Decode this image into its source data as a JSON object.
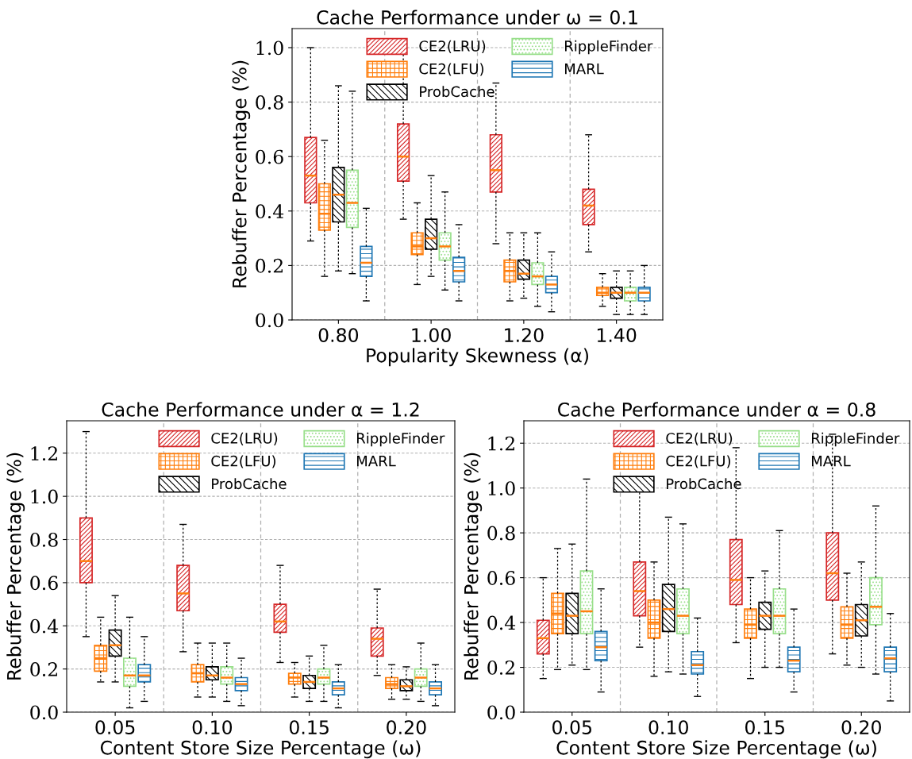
{
  "chart_data": [
    {
      "type": "box",
      "title": "Cache Performance under ω = 0.1",
      "xlabel": "Popularity Skewness (α)",
      "ylabel": "Rebuffer Percentage (%)",
      "categories": [
        "0.80",
        "1.00",
        "1.20",
        "1.40"
      ],
      "ylim": [
        0,
        1.07
      ],
      "yticks": [
        {
          "value": 0,
          "label": "0.0"
        },
        {
          "value": 0.2,
          "label": "0.2"
        },
        {
          "value": 0.4,
          "label": "0.4"
        },
        {
          "value": 0.6,
          "label": "0.6"
        },
        {
          "value": 0.8,
          "label": "0.8"
        },
        {
          "value": 1,
          "label": "1.0"
        }
      ],
      "grid": "y",
      "legend": "top right",
      "series": [
        {
          "name": "CE2(LRU)",
          "color": "#d62728",
          "boxes": [
            {
              "low": 0.29,
              "q1": 0.43,
              "median": 0.53,
              "q3": 0.67,
              "high": 1.0
            },
            {
              "low": 0.37,
              "q1": 0.51,
              "median": 0.6,
              "q3": 0.72,
              "high": 1.02
            },
            {
              "low": 0.28,
              "q1": 0.47,
              "median": 0.55,
              "q3": 0.68,
              "high": 0.87
            },
            {
              "low": 0.25,
              "q1": 0.35,
              "median": 0.42,
              "q3": 0.48,
              "high": 0.68
            }
          ]
        },
        {
          "name": "CE2(LFU)",
          "color": "#ff7f0e",
          "boxes": [
            {
              "low": 0.16,
              "q1": 0.33,
              "median": 0.39,
              "q3": 0.5,
              "high": 0.66
            },
            {
              "low": 0.13,
              "q1": 0.24,
              "median": 0.27,
              "q3": 0.32,
              "high": 0.43
            },
            {
              "low": 0.07,
              "q1": 0.14,
              "median": 0.18,
              "q3": 0.22,
              "high": 0.32
            },
            {
              "low": 0.05,
              "q1": 0.09,
              "median": 0.1,
              "q3": 0.12,
              "high": 0.17
            }
          ]
        },
        {
          "name": "ProbCache",
          "color": "#000000",
          "boxes": [
            {
              "low": 0.18,
              "q1": 0.36,
              "median": 0.46,
              "q3": 0.56,
              "high": 0.86
            },
            {
              "low": 0.16,
              "q1": 0.26,
              "median": 0.3,
              "q3": 0.37,
              "high": 0.53
            },
            {
              "low": 0.08,
              "q1": 0.15,
              "median": 0.17,
              "q3": 0.22,
              "high": 0.32
            },
            {
              "low": 0.02,
              "q1": 0.08,
              "median": 0.1,
              "q3": 0.12,
              "high": 0.18
            }
          ]
        },
        {
          "name": "RippleFinder",
          "color": "#98df8a",
          "boxes": [
            {
              "low": 0.17,
              "q1": 0.34,
              "median": 0.43,
              "q3": 0.55,
              "high": 0.84
            },
            {
              "low": 0.11,
              "q1": 0.22,
              "median": 0.27,
              "q3": 0.32,
              "high": 0.47
            },
            {
              "low": 0.05,
              "q1": 0.13,
              "median": 0.16,
              "q3": 0.21,
              "high": 0.32
            },
            {
              "low": 0.02,
              "q1": 0.07,
              "median": 0.1,
              "q3": 0.12,
              "high": 0.18
            }
          ]
        },
        {
          "name": "MARL",
          "color": "#1f77b4",
          "boxes": [
            {
              "low": 0.07,
              "q1": 0.16,
              "median": 0.21,
              "q3": 0.27,
              "high": 0.41
            },
            {
              "low": 0.07,
              "q1": 0.14,
              "median": 0.18,
              "q3": 0.23,
              "high": 0.35
            },
            {
              "low": 0.03,
              "q1": 0.1,
              "median": 0.13,
              "q3": 0.16,
              "high": 0.25
            },
            {
              "low": 0.02,
              "q1": 0.07,
              "median": 0.1,
              "q3": 0.12,
              "high": 0.2
            }
          ]
        }
      ]
    },
    {
      "type": "box",
      "title": "Cache Performance under α = 1.2",
      "xlabel": "Content Store Size Percentage (ω)",
      "ylabel": "Rebuffer Percentage (%)",
      "categories": [
        "0.05",
        "0.10",
        "0.15",
        "0.20"
      ],
      "ylim": [
        0,
        1.35
      ],
      "yticks": [
        {
          "value": 0,
          "label": "0.0"
        },
        {
          "value": 0.2,
          "label": "0.2"
        },
        {
          "value": 0.4,
          "label": "0.4"
        },
        {
          "value": 0.6,
          "label": "0.6"
        },
        {
          "value": 0.8,
          "label": "0.8"
        },
        {
          "value": 1,
          "label": "1.0"
        },
        {
          "value": 1.2,
          "label": "1.2"
        }
      ],
      "grid": "y",
      "legend": "top right",
      "series": [
        {
          "name": "CE2(LRU)",
          "color": "#d62728",
          "boxes": [
            {
              "low": 0.35,
              "q1": 0.6,
              "median": 0.7,
              "q3": 0.9,
              "high": 1.3
            },
            {
              "low": 0.28,
              "q1": 0.47,
              "median": 0.55,
              "q3": 0.68,
              "high": 0.87
            },
            {
              "low": 0.23,
              "q1": 0.37,
              "median": 0.42,
              "q3": 0.5,
              "high": 0.68
            },
            {
              "low": 0.17,
              "q1": 0.26,
              "median": 0.34,
              "q3": 0.39,
              "high": 0.57
            }
          ]
        },
        {
          "name": "CE2(LFU)",
          "color": "#ff7f0e",
          "boxes": [
            {
              "low": 0.14,
              "q1": 0.19,
              "median": 0.25,
              "q3": 0.31,
              "high": 0.44
            },
            {
              "low": 0.07,
              "q1": 0.14,
              "median": 0.18,
              "q3": 0.22,
              "high": 0.32
            },
            {
              "low": 0.07,
              "q1": 0.13,
              "median": 0.16,
              "q3": 0.18,
              "high": 0.23
            },
            {
              "low": 0.06,
              "q1": 0.11,
              "median": 0.13,
              "q3": 0.16,
              "high": 0.22
            }
          ]
        },
        {
          "name": "ProbCache",
          "color": "#000000",
          "boxes": [
            {
              "low": 0.14,
              "q1": 0.26,
              "median": 0.31,
              "q3": 0.38,
              "high": 0.54
            },
            {
              "low": 0.07,
              "q1": 0.15,
              "median": 0.17,
              "q3": 0.21,
              "high": 0.32
            },
            {
              "low": 0.05,
              "q1": 0.11,
              "median": 0.14,
              "q3": 0.17,
              "high": 0.26
            },
            {
              "low": 0.06,
              "q1": 0.1,
              "median": 0.12,
              "q3": 0.15,
              "high": 0.21
            }
          ]
        },
        {
          "name": "RippleFinder",
          "color": "#98df8a",
          "boxes": [
            {
              "low": 0.02,
              "q1": 0.12,
              "median": 0.17,
              "q3": 0.25,
              "high": 0.44
            },
            {
              "low": 0.05,
              "q1": 0.13,
              "median": 0.16,
              "q3": 0.21,
              "high": 0.32
            },
            {
              "low": 0.05,
              "q1": 0.13,
              "median": 0.16,
              "q3": 0.2,
              "high": 0.31
            },
            {
              "low": 0.05,
              "q1": 0.12,
              "median": 0.16,
              "q3": 0.2,
              "high": 0.32
            }
          ]
        },
        {
          "name": "MARL",
          "color": "#1f77b4",
          "boxes": [
            {
              "low": 0.05,
              "q1": 0.14,
              "median": 0.17,
              "q3": 0.22,
              "high": 0.35
            },
            {
              "low": 0.03,
              "q1": 0.1,
              "median": 0.13,
              "q3": 0.16,
              "high": 0.25
            },
            {
              "low": 0.02,
              "q1": 0.08,
              "median": 0.11,
              "q3": 0.14,
              "high": 0.22
            },
            {
              "low": 0.03,
              "q1": 0.08,
              "median": 0.11,
              "q3": 0.14,
              "high": 0.22
            }
          ]
        }
      ]
    },
    {
      "type": "box",
      "title": "Cache Performance under α = 0.8",
      "xlabel": "Content Store Size Percentage (ω)",
      "ylabel": "Rebuffer Percentage (%)",
      "categories": [
        "0.05",
        "0.10",
        "0.15",
        "0.20"
      ],
      "ylim": [
        0,
        1.3
      ],
      "yticks": [
        {
          "value": 0,
          "label": "0.0"
        },
        {
          "value": 0.2,
          "label": "0.2"
        },
        {
          "value": 0.4,
          "label": "0.4"
        },
        {
          "value": 0.6,
          "label": "0.6"
        },
        {
          "value": 0.8,
          "label": "0.8"
        },
        {
          "value": 1,
          "label": "1.0"
        },
        {
          "value": 1.2,
          "label": "1.2"
        }
      ],
      "grid": "y",
      "legend": "top right",
      "series": [
        {
          "name": "CE2(LRU)",
          "color": "#d62728",
          "boxes": [
            {
              "low": 0.15,
              "q1": 0.26,
              "median": 0.33,
              "q3": 0.41,
              "high": 0.6
            },
            {
              "low": 0.29,
              "q1": 0.43,
              "median": 0.54,
              "q3": 0.67,
              "high": 1.01
            },
            {
              "low": 0.31,
              "q1": 0.48,
              "median": 0.59,
              "q3": 0.77,
              "high": 1.18
            },
            {
              "low": 0.26,
              "q1": 0.5,
              "median": 0.62,
              "q3": 0.8,
              "high": 1.24
            }
          ]
        },
        {
          "name": "CE2(LFU)",
          "color": "#ff7f0e",
          "boxes": [
            {
              "low": 0.19,
              "q1": 0.35,
              "median": 0.44,
              "q3": 0.53,
              "high": 0.73
            },
            {
              "low": 0.16,
              "q1": 0.33,
              "median": 0.4,
              "q3": 0.5,
              "high": 0.67
            },
            {
              "low": 0.15,
              "q1": 0.33,
              "median": 0.39,
              "q3": 0.46,
              "high": 0.6
            },
            {
              "low": 0.21,
              "q1": 0.33,
              "median": 0.39,
              "q3": 0.47,
              "high": 0.62
            }
          ]
        },
        {
          "name": "ProbCache",
          "color": "#000000",
          "boxes": [
            {
              "low": 0.21,
              "q1": 0.35,
              "median": 0.43,
              "q3": 0.53,
              "high": 0.75
            },
            {
              "low": 0.18,
              "q1": 0.36,
              "median": 0.46,
              "q3": 0.57,
              "high": 0.87
            },
            {
              "low": 0.2,
              "q1": 0.37,
              "median": 0.43,
              "q3": 0.49,
              "high": 0.63
            },
            {
              "low": 0.2,
              "q1": 0.34,
              "median": 0.41,
              "q3": 0.48,
              "high": 0.67
            }
          ]
        },
        {
          "name": "RippleFinder",
          "color": "#98df8a",
          "boxes": [
            {
              "low": 0.19,
              "q1": 0.35,
              "median": 0.45,
              "q3": 0.63,
              "high": 1.04
            },
            {
              "low": 0.17,
              "q1": 0.35,
              "median": 0.43,
              "q3": 0.55,
              "high": 0.84
            },
            {
              "low": 0.2,
              "q1": 0.35,
              "median": 0.43,
              "q3": 0.55,
              "high": 0.81
            },
            {
              "low": 0.17,
              "q1": 0.39,
              "median": 0.47,
              "q3": 0.6,
              "high": 0.92
            }
          ]
        },
        {
          "name": "MARL",
          "color": "#1f77b4",
          "boxes": [
            {
              "low": 0.09,
              "q1": 0.23,
              "median": 0.29,
              "q3": 0.36,
              "high": 0.55
            },
            {
              "low": 0.07,
              "q1": 0.17,
              "median": 0.21,
              "q3": 0.27,
              "high": 0.42
            },
            {
              "low": 0.09,
              "q1": 0.18,
              "median": 0.23,
              "q3": 0.29,
              "high": 0.46
            },
            {
              "low": 0.05,
              "q1": 0.18,
              "median": 0.24,
              "q3": 0.29,
              "high": 0.44
            }
          ]
        }
      ]
    }
  ]
}
